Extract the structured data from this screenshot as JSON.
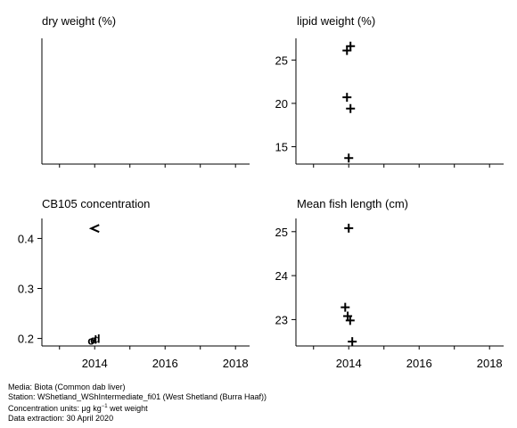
{
  "chart_data": [
    {
      "type": "scatter",
      "title": "dry weight (%)",
      "xlim": [
        2012.5,
        2018.4
      ],
      "x_ticks": [],
      "ylim": null,
      "y_ticks": [],
      "points": []
    },
    {
      "type": "scatter",
      "title": "lipid weight (%)",
      "xlim": [
        2012.5,
        2018.4
      ],
      "x_ticks": [],
      "ylim": [
        13.0,
        27.5
      ],
      "y_ticks": [
        15,
        20,
        25
      ],
      "points": [
        {
          "x": 2014.05,
          "y": 26.6,
          "marker": "+"
        },
        {
          "x": 2013.95,
          "y": 26.1,
          "marker": "+"
        },
        {
          "x": 2013.95,
          "y": 20.7,
          "marker": "+"
        },
        {
          "x": 2014.05,
          "y": 19.4,
          "marker": "+"
        },
        {
          "x": 2014.0,
          "y": 13.7,
          "marker": "+"
        }
      ]
    },
    {
      "type": "scatter",
      "title": "CB105 concentration",
      "xlim": [
        2012.5,
        2018.4
      ],
      "x_ticks": [
        2014,
        2016,
        2018
      ],
      "ylim": [
        0.185,
        0.44
      ],
      "y_ticks": [
        0.2,
        0.3,
        0.4
      ],
      "points": [
        {
          "x": 2014.0,
          "y": 0.42,
          "marker": "<"
        },
        {
          "x": 2013.9,
          "y": 0.197,
          "marker": "o"
        },
        {
          "x": 2013.97,
          "y": 0.198,
          "marker": "d"
        },
        {
          "x": 2014.06,
          "y": 0.2,
          "marker": "d"
        }
      ]
    },
    {
      "type": "scatter",
      "title": "Mean fish length (cm)",
      "xlim": [
        2012.5,
        2018.4
      ],
      "x_ticks": [
        2014,
        2016,
        2018
      ],
      "ylim": [
        22.4,
        25.3
      ],
      "y_ticks": [
        23,
        24,
        25
      ],
      "points": [
        {
          "x": 2014.0,
          "y": 25.08,
          "marker": "+"
        },
        {
          "x": 2013.9,
          "y": 23.28,
          "marker": "+"
        },
        {
          "x": 2013.97,
          "y": 23.08,
          "marker": "+"
        },
        {
          "x": 2014.04,
          "y": 22.98,
          "marker": "+"
        },
        {
          "x": 2014.1,
          "y": 22.5,
          "marker": "+"
        }
      ]
    }
  ],
  "footer": {
    "media": "Media: Biota (Common dab liver)",
    "station": "Station: WShetland_WShIntermediate_fi01 (West Shetland (Burra Haaf))",
    "units_prefix": "Concentration units:  μg kg",
    "units_exp": "−1",
    "units_suffix": " wet weight",
    "extraction": "Data extraction: 30 April 2020"
  }
}
